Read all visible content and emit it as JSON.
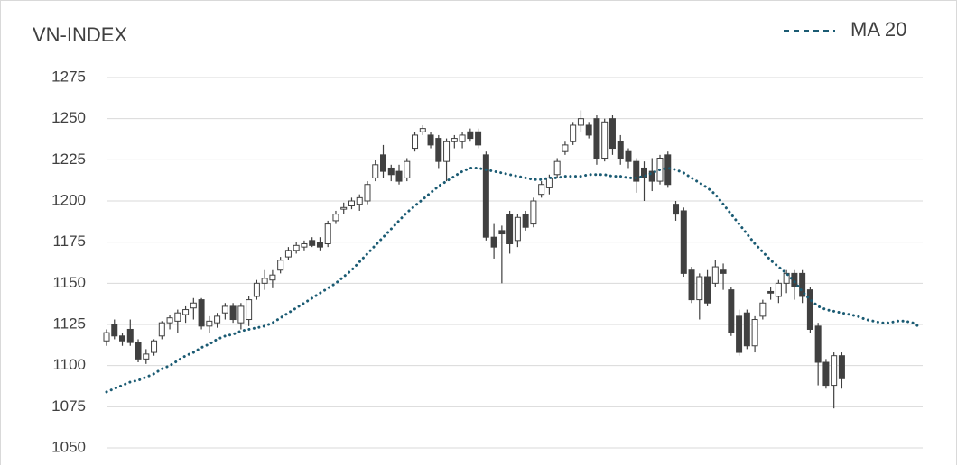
{
  "chart_data": {
    "type": "candlestick",
    "title": "VN-INDEX",
    "open": [
      1115,
      1125,
      1118,
      1122,
      1114,
      1104,
      1108,
      1118,
      1126,
      1127,
      1131,
      1135,
      1140,
      1124,
      1126,
      1132,
      1136,
      1126,
      1128,
      1142,
      1150,
      1152,
      1158,
      1166,
      1170,
      1172,
      1176,
      1175,
      1174,
      1188,
      1195,
      1197,
      1198,
      1200,
      1214,
      1228,
      1220,
      1218,
      1214,
      1232,
      1242,
      1240,
      1238,
      1224,
      1236,
      1236,
      1242,
      1242,
      1228,
      1178,
      1182,
      1192,
      1176,
      1192,
      1186,
      1204,
      1208,
      1216,
      1230,
      1236,
      1246,
      1246,
      1250,
      1226,
      1250,
      1236,
      1230,
      1224,
      1220,
      1218,
      1212,
      1228,
      1198,
      1194,
      1158,
      1140,
      1154,
      1150,
      1158,
      1146,
      1130,
      1132,
      1112,
      1130,
      1145,
      1142,
      1150,
      1156,
      1156,
      1146,
      1124,
      1102,
      1088,
      1106,
      null,
      null,
      null,
      null,
      null,
      null,
      null,
      null,
      null,
      null
    ],
    "high": [
      1122,
      1128,
      1120,
      1128,
      1116,
      1110,
      1116,
      1127,
      1131,
      1134,
      1136,
      1141,
      1141,
      1130,
      1132,
      1138,
      1138,
      1138,
      1142,
      1152,
      1158,
      1158,
      1166,
      1172,
      1175,
      1176,
      1178,
      1178,
      1188,
      1194,
      1199,
      1202,
      1204,
      1212,
      1225,
      1234,
      1222,
      1222,
      1226,
      1242,
      1246,
      1242,
      1240,
      1238,
      1240,
      1242,
      1244,
      1244,
      1230,
      1186,
      1185,
      1194,
      1192,
      1194,
      1202,
      1212,
      1216,
      1226,
      1236,
      1248,
      1255,
      1248,
      1252,
      1250,
      1252,
      1240,
      1232,
      1226,
      1224,
      1226,
      1228,
      1230,
      1200,
      1196,
      1160,
      1156,
      1158,
      1164,
      1162,
      1148,
      1134,
      1134,
      1130,
      1140,
      1148,
      1152,
      1158,
      1158,
      1158,
      1148,
      1126,
      1104,
      1108,
      1108,
      null,
      null,
      null,
      null,
      null,
      null,
      null,
      null,
      null,
      null
    ],
    "low": [
      1112,
      1116,
      1112,
      1112,
      1102,
      1101,
      1106,
      1116,
      1122,
      1120,
      1126,
      1128,
      1122,
      1120,
      1123,
      1128,
      1126,
      1122,
      1124,
      1140,
      1146,
      1147,
      1156,
      1164,
      1168,
      1170,
      1172,
      1170,
      1172,
      1186,
      1192,
      1195,
      1194,
      1198,
      1212,
      1214,
      1212,
      1210,
      1212,
      1230,
      1240,
      1232,
      1220,
      1212,
      1232,
      1232,
      1236,
      1232,
      1176,
      1165,
      1150,
      1168,
      1172,
      1182,
      1184,
      1202,
      1204,
      1214,
      1228,
      1234,
      1242,
      1238,
      1222,
      1224,
      1228,
      1222,
      1220,
      1205,
      1200,
      1206,
      1210,
      1208,
      1188,
      1154,
      1138,
      1128,
      1136,
      1148,
      1146,
      1118,
      1106,
      1110,
      1108,
      1128,
      1140,
      1138,
      1144,
      1140,
      1138,
      1120,
      1088,
      1086,
      1074,
      1086,
      null,
      null,
      null,
      null,
      null,
      null,
      null,
      null,
      null,
      null
    ],
    "close": [
      1120,
      1118,
      1115,
      1114,
      1104,
      1107,
      1115,
      1126,
      1129,
      1132,
      1134,
      1138,
      1124,
      1127,
      1130,
      1136,
      1128,
      1136,
      1140,
      1150,
      1153,
      1155,
      1164,
      1170,
      1173,
      1174,
      1173,
      1172,
      1186,
      1192,
      1196,
      1200,
      1202,
      1210,
      1222,
      1218,
      1216,
      1212,
      1224,
      1240,
      1244,
      1234,
      1224,
      1236,
      1238,
      1240,
      1238,
      1234,
      1178,
      1172,
      1180,
      1174,
      1190,
      1184,
      1200,
      1210,
      1214,
      1224,
      1234,
      1246,
      1250,
      1240,
      1226,
      1248,
      1232,
      1226,
      1224,
      1212,
      1214,
      1212,
      1226,
      1210,
      1192,
      1156,
      1140,
      1154,
      1138,
      1160,
      1156,
      1120,
      1108,
      1112,
      1128,
      1138,
      1144,
      1150,
      1156,
      1148,
      1142,
      1122,
      1102,
      1088,
      1106,
      1092,
      null,
      null,
      null,
      null,
      null,
      null,
      null,
      null,
      null,
      null
    ],
    "up_color": "#ffffff",
    "down_color": "#404040",
    "series": [
      {
        "name": "MA 20",
        "color": "#1b5b73",
        "values": [
          1084,
          1086,
          1088,
          1090,
          1091,
          1093,
          1095,
          1098,
          1100,
          1103,
          1106,
          1108,
          1111,
          1113,
          1116,
          1118,
          1119,
          1121,
          1122,
          1123,
          1124,
          1126,
          1129,
          1132,
          1135,
          1138,
          1141,
          1144,
          1147,
          1150,
          1154,
          1158,
          1163,
          1168,
          1173,
          1178,
          1183,
          1188,
          1193,
          1197,
          1201,
          1205,
          1209,
          1212,
          1215,
          1218,
          1220,
          1220,
          1219,
          1218,
          1217,
          1216,
          1215,
          1214,
          1213,
          1213,
          1214,
          1214,
          1215,
          1215,
          1215,
          1216,
          1216,
          1216,
          1215,
          1215,
          1214,
          1214,
          1215,
          1217,
          1219,
          1220,
          1219,
          1217,
          1214,
          1211,
          1208,
          1204,
          1198,
          1192,
          1186,
          1180,
          1174,
          1169,
          1164,
          1160,
          1156,
          1151,
          1145,
          1140,
          1136,
          1134,
          1133,
          1132,
          1131,
          1130,
          1128,
          1127,
          1126,
          1126,
          1127,
          1127,
          1126,
          1123
        ]
      }
    ],
    "ylim": [
      1050,
      1275
    ],
    "yticks": [
      1050,
      1075,
      1100,
      1125,
      1150,
      1175,
      1200,
      1225,
      1250,
      1275
    ],
    "grid": true,
    "legend": "top-right"
  }
}
